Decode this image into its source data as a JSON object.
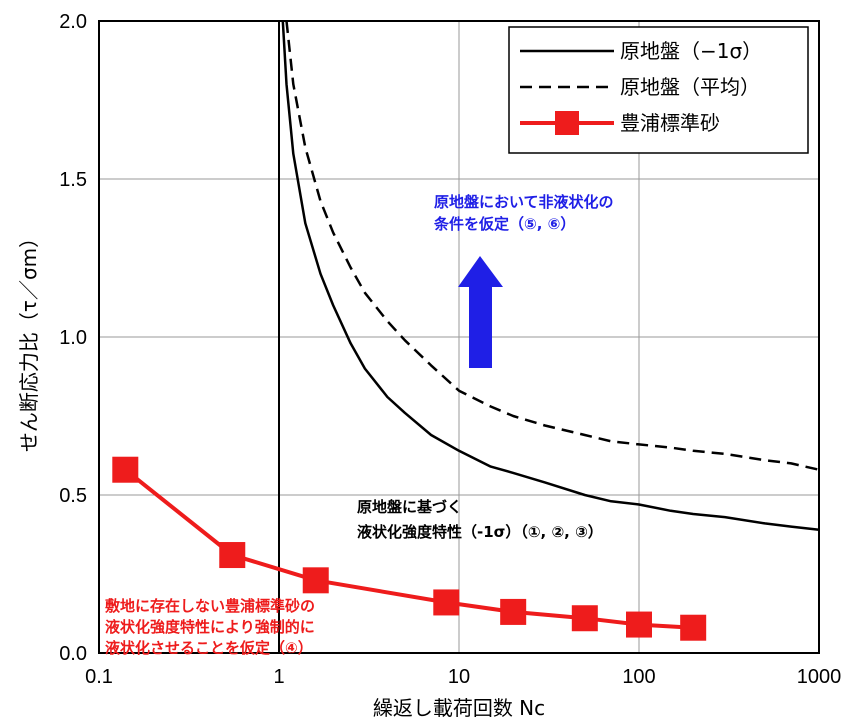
{
  "chart_data": {
    "type": "line",
    "x_scale": "log",
    "xlim": [
      0.1,
      1000
    ],
    "ylim": [
      0.0,
      2.0
    ],
    "x_ticks": [
      "0.1",
      "1",
      "10",
      "100",
      "1000"
    ],
    "y_ticks": [
      "0.0",
      "0.5",
      "1.0",
      "1.5",
      "2.0"
    ],
    "xlabel": "繰返し載荷回数 Nc",
    "ylabel": "せん断応力比（τ／σm）",
    "grid": true,
    "legend_position": "top-right",
    "vertical_reference_x": 1,
    "series": [
      {
        "name": "原地盤(−1σ)",
        "style": "solid",
        "color": "#000000",
        "x": [
          1.05,
          1.1,
          1.2,
          1.4,
          1.7,
          2,
          2.5,
          3,
          4,
          5,
          7,
          10,
          15,
          20,
          30,
          50,
          70,
          100,
          150,
          200,
          300,
          500,
          700,
          1000
        ],
        "y": [
          2.0,
          1.8,
          1.58,
          1.36,
          1.2,
          1.1,
          0.98,
          0.9,
          0.81,
          0.76,
          0.69,
          0.64,
          0.59,
          0.57,
          0.54,
          0.5,
          0.48,
          0.47,
          0.45,
          0.44,
          0.43,
          0.41,
          0.4,
          0.39
        ]
      },
      {
        "name": "原地盤(平均)",
        "style": "dashed",
        "color": "#000000",
        "x": [
          1.1,
          1.2,
          1.4,
          1.7,
          2,
          2.5,
          3,
          4,
          5,
          7,
          10,
          15,
          20,
          30,
          50,
          70,
          100,
          150,
          200,
          300,
          500,
          700,
          1000
        ],
        "y": [
          2.0,
          1.8,
          1.6,
          1.43,
          1.33,
          1.22,
          1.14,
          1.05,
          0.99,
          0.91,
          0.83,
          0.78,
          0.75,
          0.72,
          0.69,
          0.67,
          0.66,
          0.65,
          0.64,
          0.63,
          0.61,
          0.6,
          0.58
        ]
      },
      {
        "name": "豊浦標準砂",
        "style": "solid-square-markers",
        "color": "#ee1c1c",
        "x": [
          0.14,
          0.55,
          1.6,
          8.5,
          20,
          50,
          100,
          200
        ],
        "y": [
          0.58,
          0.31,
          0.23,
          0.16,
          0.13,
          0.11,
          0.09,
          0.08
        ]
      }
    ],
    "legend": [
      {
        "label": "原地盤（−1σ）"
      },
      {
        "label": "原地盤（平均）"
      },
      {
        "label": "豊浦標準砂"
      }
    ],
    "annotations": {
      "blue": {
        "color": "#1f1fe6",
        "lines": [
          "原地盤において非液状化の",
          "条件を仮定（⑤, ⑥）"
        ]
      },
      "black": {
        "color": "#000000",
        "lines": [
          "原地盤に基づく",
          "液状化強度特性（-1σ）（①, ②, ③）"
        ]
      },
      "red": {
        "color": "#ee1c1c",
        "lines": [
          "敷地に存在しない豊浦標準砂の",
          "液状化強度特性により強制的に",
          "液状化させることを仮定（④）"
        ]
      }
    }
  }
}
